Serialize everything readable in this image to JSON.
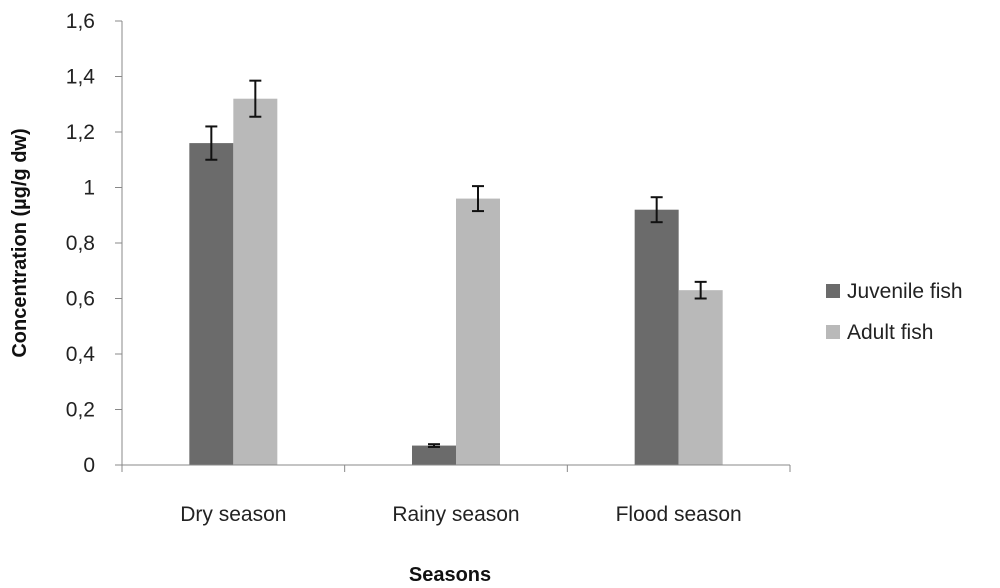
{
  "chart_data": {
    "type": "bar",
    "title": "",
    "xlabel": "Seasons",
    "ylabel": "Concentration (µg/g dw)",
    "categories": [
      "Dry season",
      "Rainy season",
      "Flood season"
    ],
    "series": [
      {
        "name": "Juvenile fish",
        "color": "#6b6b6b",
        "values": [
          1.16,
          0.07,
          0.92
        ],
        "errors": [
          0.06,
          0.005,
          0.045
        ]
      },
      {
        "name": "Adult fish",
        "color": "#b9b9b9",
        "values": [
          1.32,
          0.96,
          0.63
        ],
        "errors": [
          0.065,
          0.045,
          0.03
        ]
      }
    ],
    "ylim": [
      0,
      1.6
    ],
    "yticks": [
      0,
      0.2,
      0.4,
      0.6,
      0.8,
      1,
      1.2,
      1.4,
      1.6
    ],
    "ytick_labels": [
      "0",
      "0,2",
      "0,4",
      "0,6",
      "0,8",
      "1",
      "1,2",
      "1,4",
      "1,6"
    ],
    "grid": false,
    "legend_position": "right"
  }
}
